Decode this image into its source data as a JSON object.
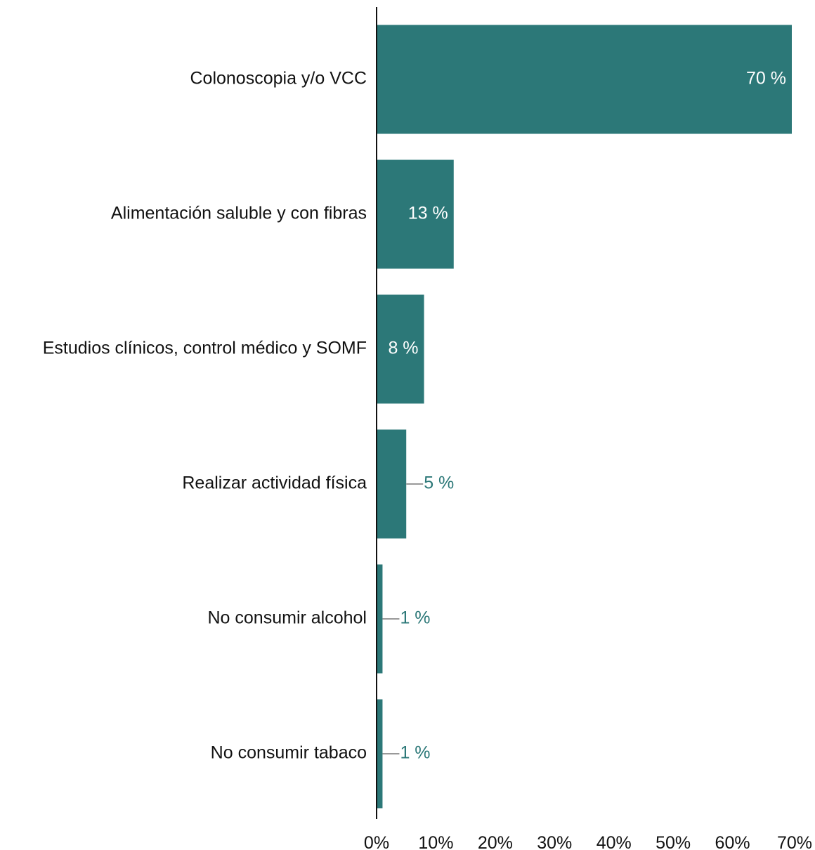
{
  "chart_data": {
    "type": "bar",
    "orientation": "horizontal",
    "categories": [
      "Colonoscopia y/o VCC",
      "Alimentación saluble y con fibras",
      "Estudios clínicos, control médico y SOMF",
      "Realizar actividad física",
      "No consumir alcohol",
      "No consumir tabaco"
    ],
    "values": [
      70,
      13,
      8,
      5,
      1,
      1
    ],
    "data_labels": [
      "70 %",
      "13 %",
      "8 %",
      "5 %",
      "1 %",
      "1 %"
    ],
    "xlim": [
      0,
      70
    ],
    "x_ticks": [
      0,
      10,
      20,
      30,
      40,
      50,
      60,
      70
    ],
    "x_tick_labels": [
      "0%",
      "10%",
      "20%",
      "30%",
      "40%",
      "50%",
      "60%",
      "70%"
    ],
    "title": "",
    "xlabel": "",
    "ylabel": "",
    "grid": false,
    "legend": "none",
    "colors": {
      "bar": "#2c7878",
      "axis": "#111111",
      "leader_line": "#999999",
      "outside_label": "#2c7878"
    }
  }
}
